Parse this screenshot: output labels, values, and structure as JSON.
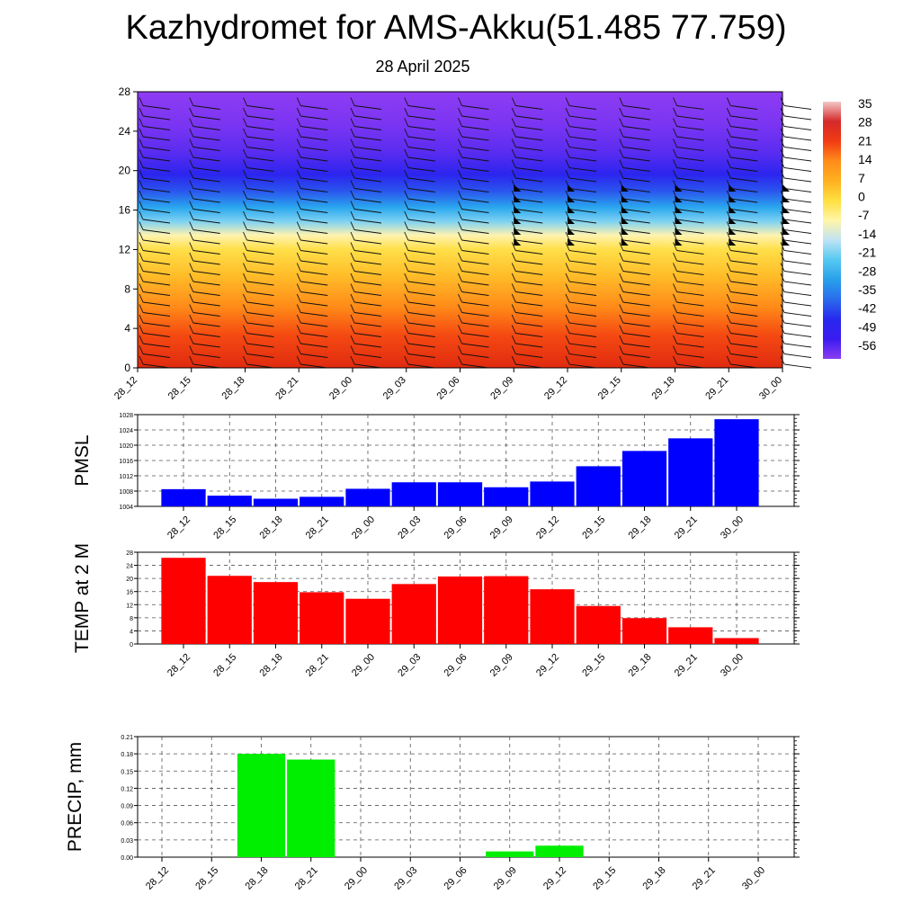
{
  "header": {
    "title": "Kazhydromet for AMS-Akku(51.485 77.759)",
    "subtitle": "28 April 2025"
  },
  "chart_data": [
    {
      "type": "heatmap",
      "x_labels": [
        "28_12",
        "28_15",
        "28_18",
        "28_21",
        "29_00",
        "29_03",
        "29_06",
        "29_09",
        "29_12",
        "29_15",
        "29_18",
        "29_21",
        "30_00"
      ],
      "ylim": [
        0,
        28
      ],
      "y_ticks": [
        0,
        4,
        8,
        12,
        16,
        20,
        24,
        28
      ],
      "colorbar_labels": [
        "35",
        "28",
        "21",
        "14",
        "7",
        "0",
        "-7",
        "-14",
        "-21",
        "-28",
        "-35",
        "-42",
        "-49",
        "-56"
      ],
      "color_stops": [
        {
          "v": 35,
          "c": "#f4c7c7"
        },
        {
          "v": 30,
          "c": "#d42a2a"
        },
        {
          "v": 21,
          "c": "#f23a14"
        },
        {
          "v": 14,
          "c": "#ff8c1a"
        },
        {
          "v": 7,
          "c": "#ffb020"
        },
        {
          "v": 0,
          "c": "#ffe040"
        },
        {
          "v": -7,
          "c": "#fff5a8"
        },
        {
          "v": -14,
          "c": "#bfe3f5"
        },
        {
          "v": -21,
          "c": "#55c8f0"
        },
        {
          "v": -28,
          "c": "#28a0ea"
        },
        {
          "v": -35,
          "c": "#2a6bec"
        },
        {
          "v": -42,
          "c": "#2828ee"
        },
        {
          "v": -49,
          "c": "#3a1cf0"
        },
        {
          "v": -56,
          "c": "#8a3cf0"
        }
      ]
    },
    {
      "type": "line",
      "ylabel": "PMSL",
      "x": [
        "28_12",
        "28_15",
        "28_18",
        "28_21",
        "29_00",
        "29_03",
        "29_06",
        "29_09",
        "29_12",
        "29_15",
        "29_18",
        "29_21",
        "30_00"
      ],
      "values": [
        1008.5,
        1006.8,
        1006.0,
        1006.5,
        1008.6,
        1010.3,
        1010.3,
        1009.0,
        1010.5,
        1014.5,
        1018.5,
        1021.8,
        1026.8
      ],
      "ylim": [
        1004,
        1028
      ],
      "y_ticks": [
        1004,
        1008,
        1012,
        1016,
        1020,
        1024,
        1028
      ],
      "color": "#0000ff"
    },
    {
      "type": "line",
      "ylabel": "TEMP at 2 M",
      "x": [
        "28_12",
        "28_15",
        "28_18",
        "28_21",
        "29_00",
        "29_03",
        "29_06",
        "29_09",
        "29_12",
        "29_15",
        "29_18",
        "29_21",
        "30_00"
      ],
      "values": [
        26.3,
        20.8,
        18.9,
        15.8,
        13.8,
        18.3,
        20.6,
        20.7,
        16.7,
        11.6,
        7.9,
        5.1,
        1.8
      ],
      "ylim": [
        0,
        28
      ],
      "y_ticks": [
        0,
        4,
        8,
        12,
        16,
        20,
        24,
        28
      ],
      "color": "#ff0000"
    },
    {
      "type": "bar",
      "ylabel": "PRECIP, mm",
      "categories": [
        "28_12",
        "28_15",
        "28_18",
        "28_21",
        "29_00",
        "29_03",
        "29_06",
        "29_09",
        "29_12",
        "29_15",
        "29_18",
        "29_21",
        "30_00"
      ],
      "values": [
        0,
        0,
        0.18,
        0.17,
        0,
        0,
        0,
        0.01,
        0.02,
        0,
        0,
        0,
        0
      ],
      "ylim": [
        0,
        0.21
      ],
      "y_ticks": [
        "0.00",
        "0.03",
        "0.06",
        "0.09",
        "0.12",
        "0.15",
        "0.18",
        "0.21"
      ],
      "color": "#00ee00"
    }
  ]
}
